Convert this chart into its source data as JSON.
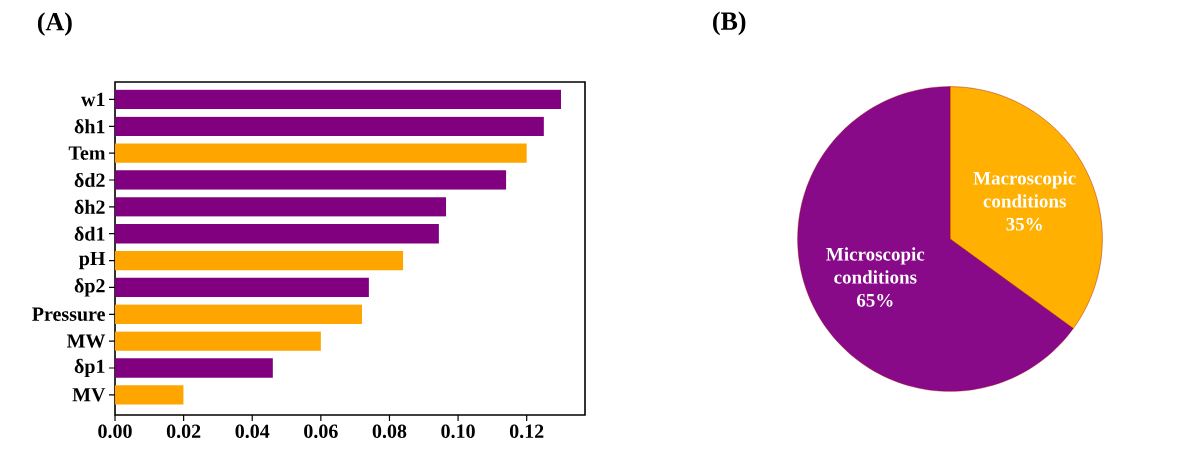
{
  "chart_data": [
    {
      "type": "bar",
      "title": "(A)",
      "orientation": "horizontal",
      "categories": [
        "w1",
        "δh1",
        "Tem",
        "δd2",
        "δh2",
        "δd1",
        "pH",
        "δp2",
        "Pressure",
        "MW",
        "δp1",
        "MV"
      ],
      "values": [
        0.13,
        0.125,
        0.12,
        0.114,
        0.0965,
        0.0944,
        0.084,
        0.074,
        0.072,
        0.06,
        0.046,
        0.02
      ],
      "colors": [
        "#800080",
        "#800080",
        "#ffa500",
        "#800080",
        "#800080",
        "#800080",
        "#ffa500",
        "#800080",
        "#ffa500",
        "#ffa500",
        "#800080",
        "#ffa500"
      ],
      "xlim": [
        0,
        0.137
      ],
      "xticks": [
        {
          "value": 0,
          "label": "0.00"
        },
        {
          "value": 0.02,
          "label": "0.02"
        },
        {
          "value": 0.04,
          "label": "0.04"
        },
        {
          "value": 0.06,
          "label": "0.06"
        },
        {
          "value": 0.08,
          "label": "0.08"
        },
        {
          "value": 0.1,
          "label": "0.10"
        },
        {
          "value": 0.12,
          "label": "0.12"
        }
      ]
    },
    {
      "type": "pie",
      "title": "(B)",
      "categories": [
        "Macroscopic conditions",
        "Microscopic conditions"
      ],
      "values": [
        35,
        65
      ],
      "value_labels": [
        "35%",
        "65%"
      ],
      "colors": [
        "#ffb000",
        "#880a88"
      ]
    }
  ]
}
